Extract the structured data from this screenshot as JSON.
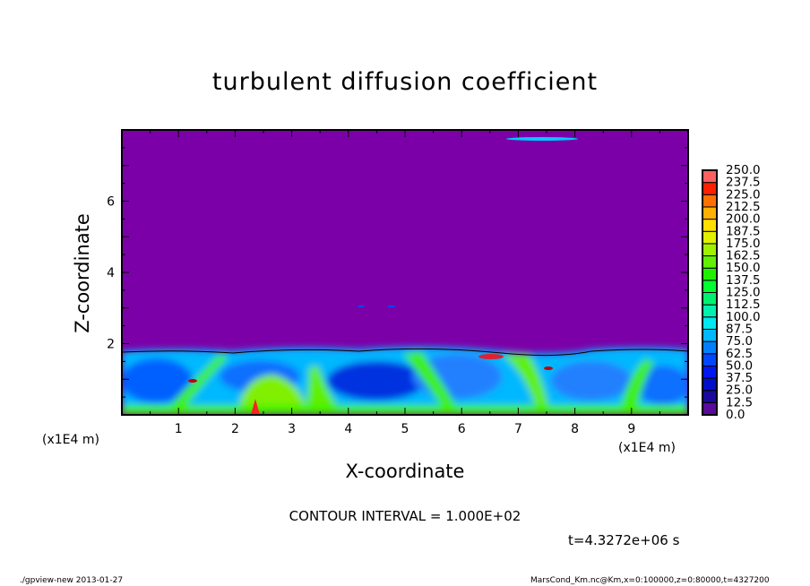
{
  "chart_data": {
    "type": "heatmap",
    "title": "turbulent diffusion coefficient",
    "xlabel": "X-coordinate",
    "ylabel": "Z-coordinate",
    "x_unit": "(x1E4 m)",
    "xlim": [
      0,
      10
    ],
    "ylim": [
      0,
      8
    ],
    "xticks": [
      1,
      2,
      3,
      4,
      5,
      6,
      7,
      8,
      9
    ],
    "yticks": [
      2,
      4,
      6
    ],
    "colorbar": {
      "levels": [
        "0.0",
        "12.5",
        "25.0",
        "37.5",
        "50.0",
        "62.5",
        "75.0",
        "87.5",
        "100.0",
        "112.5",
        "125.0",
        "137.5",
        "150.0",
        "162.5",
        "175.0",
        "187.5",
        "200.0",
        "212.5",
        "225.0",
        "237.5",
        "250.0"
      ],
      "colors": [
        "#5a0a9a",
        "#1a0a9c",
        "#0010c8",
        "#0018f0",
        "#0048ff",
        "#0080ff",
        "#00b8ff",
        "#00e8f0",
        "#00f0b0",
        "#00f070",
        "#00ff30",
        "#20f000",
        "#60f000",
        "#a0f000",
        "#e0f000",
        "#ffe000",
        "#ffb000",
        "#ff7000",
        "#ff2000",
        "#ff6060"
      ]
    },
    "background_color": "#7b00a8",
    "contour_interval": "CONTOUR INTERVAL = 1.000E+02",
    "time": "t=4.3272e+06 s"
  },
  "footer": {
    "left": "./gpview-new   2013-01-27",
    "right": "MarsCond_Km.nc@Km,x=0:100000,z=0:80000,t=4327200"
  }
}
